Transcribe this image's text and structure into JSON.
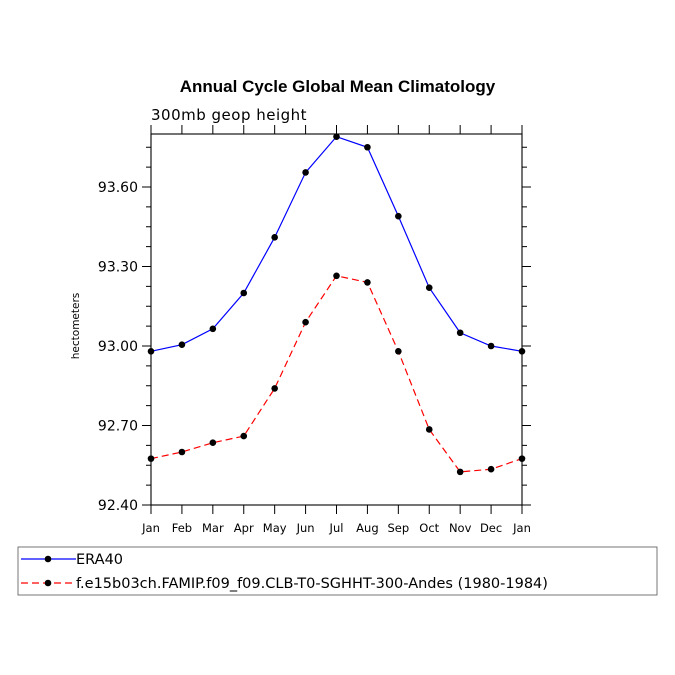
{
  "chart_data": {
    "type": "line",
    "title": "Annual Cycle Global Mean Climatology",
    "subtitle": "300mb geop height",
    "xlabel": "",
    "ylabel": "hectometers",
    "categories": [
      "Jan",
      "Feb",
      "Mar",
      "Apr",
      "May",
      "Jun",
      "Jul",
      "Aug",
      "Sep",
      "Oct",
      "Nov",
      "Dec",
      "Jan"
    ],
    "yticks": [
      "92.40",
      "92.70",
      "93.00",
      "93.30",
      "93.60"
    ],
    "ytick_values": [
      92.4,
      92.7,
      93.0,
      93.3,
      93.6
    ],
    "ylim": [
      92.4,
      93.8
    ],
    "series": [
      {
        "name": "ERA40",
        "color": "#0000ff",
        "dash": "solid",
        "values": [
          92.98,
          93.005,
          93.065,
          93.2,
          93.41,
          93.655,
          93.79,
          93.75,
          93.49,
          93.22,
          93.05,
          93.0,
          92.98
        ]
      },
      {
        "name": "f.e15b03ch.FAMIP.f09_f09.CLB-T0-SGHHT-300-Andes (1980-1984)",
        "color": "#ff0000",
        "dash": "dashed",
        "values": [
          92.575,
          92.6,
          92.635,
          92.66,
          92.84,
          93.09,
          93.265,
          93.24,
          92.98,
          92.685,
          92.525,
          92.535,
          92.575
        ]
      }
    ]
  }
}
